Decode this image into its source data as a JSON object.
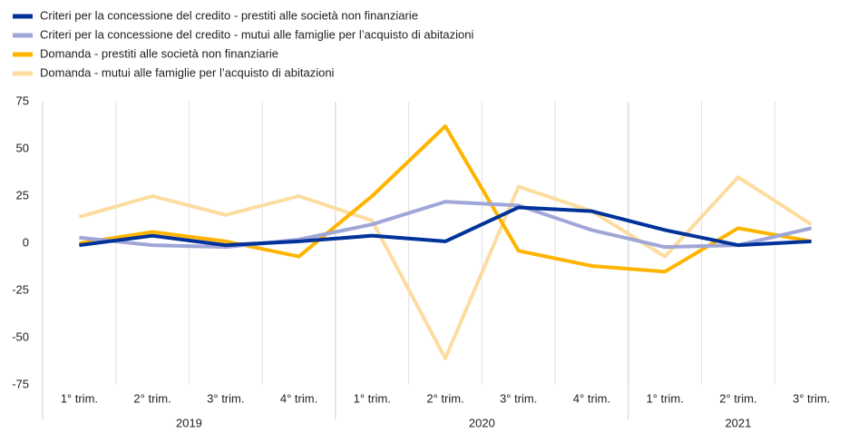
{
  "chart_data": {
    "type": "line",
    "groups": [
      {
        "label": "2019",
        "categories": [
          "1° trim.",
          "2° trim.",
          "3° trim.",
          "4° trim."
        ]
      },
      {
        "label": "2020",
        "categories": [
          "1° trim.",
          "2° trim.",
          "3° trim.",
          "4° trim."
        ]
      },
      {
        "label": "2021",
        "categories": [
          "1° trim.",
          "2° trim.",
          "3° trim."
        ]
      }
    ],
    "series": [
      {
        "name": "Criteri per la concessione del credito - prestiti alle società non finanziarie",
        "color": "#003299",
        "values": [
          -1,
          4,
          -1,
          1,
          4,
          1,
          19,
          17,
          7,
          -1,
          1
        ]
      },
      {
        "name": "Criteri per la concessione del credito - mutui alle famiglie per l’acquisto di abitazioni",
        "color": "#a0a6d8",
        "values": [
          3,
          -1,
          -2,
          2,
          10,
          22,
          20,
          7,
          -2,
          -1,
          8
        ]
      },
      {
        "name": "Domanda - prestiti alle società non finanziarie",
        "color": "#ffb400",
        "values": [
          0,
          6,
          1,
          -7,
          25,
          62,
          -4,
          -12,
          -15,
          8,
          1
        ]
      },
      {
        "name": "Domanda - mutui alle famiglie per l’acquisto di abitazioni",
        "color": "#fddca0",
        "values": [
          14,
          25,
          15,
          25,
          12,
          -61,
          30,
          17,
          -7,
          35,
          10
        ]
      }
    ],
    "ylim": [
      -75,
      75
    ],
    "yticks": [
      -75,
      -50,
      -25,
      0,
      25,
      50,
      75
    ],
    "grid": true,
    "legend": "top-left"
  }
}
